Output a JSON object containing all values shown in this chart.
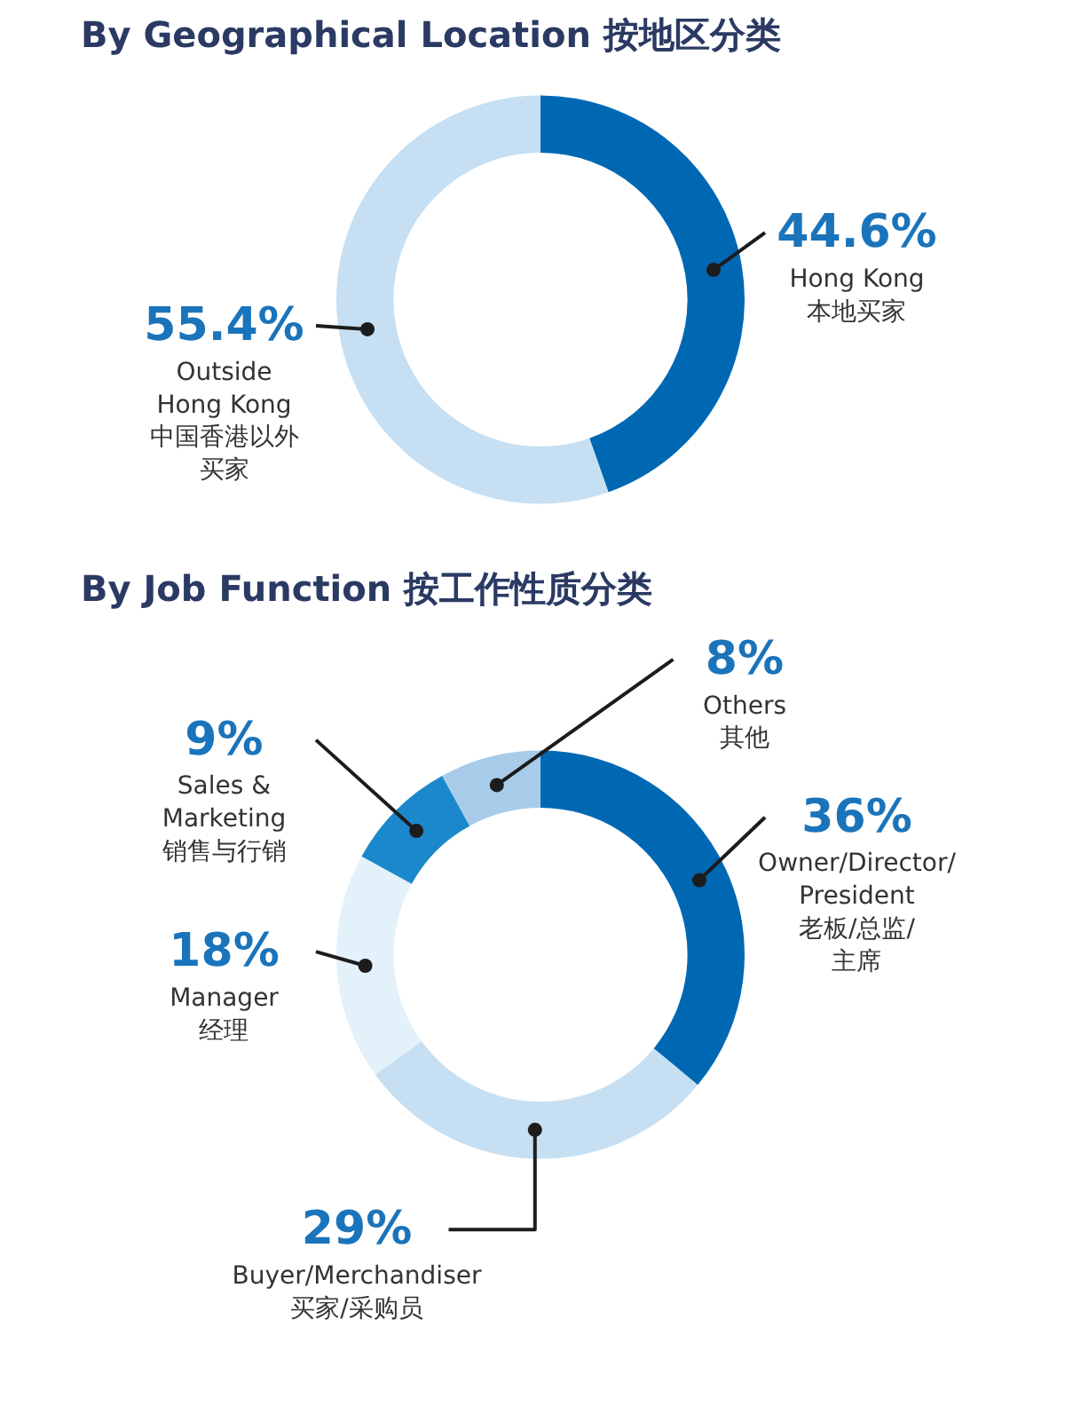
{
  "chart_data": [
    {
      "type": "donut",
      "title": "By Geographical Location 按地区分类",
      "categories": [
        "Hong Kong\n本地买家",
        "Outside\nHong Kong\n中国香港以外买家"
      ],
      "values": [
        44.6,
        55.4
      ],
      "value_labels": [
        "44.6%",
        "55.4%"
      ],
      "colors": [
        "#0068b3",
        "#c6dff2"
      ]
    },
    {
      "type": "donut",
      "title": "By Job Function 按工作性质分类",
      "categories": [
        "Owner/Director/\nPresident\n老板/总监/主席",
        "Buyer/Merchandiser\n买家/采购员",
        "Manager\n经理",
        "Sales &\nMarketing\n销售与行销",
        "Others\n其他"
      ],
      "values": [
        36,
        29,
        18,
        9,
        8
      ],
      "value_labels": [
        "36%",
        "29%",
        "18%",
        "9%",
        "8%"
      ],
      "colors": [
        "#0068b3",
        "#c6dff2",
        "#e2f1fa",
        "#1b88cc",
        "#a7cbe9"
      ]
    }
  ]
}
